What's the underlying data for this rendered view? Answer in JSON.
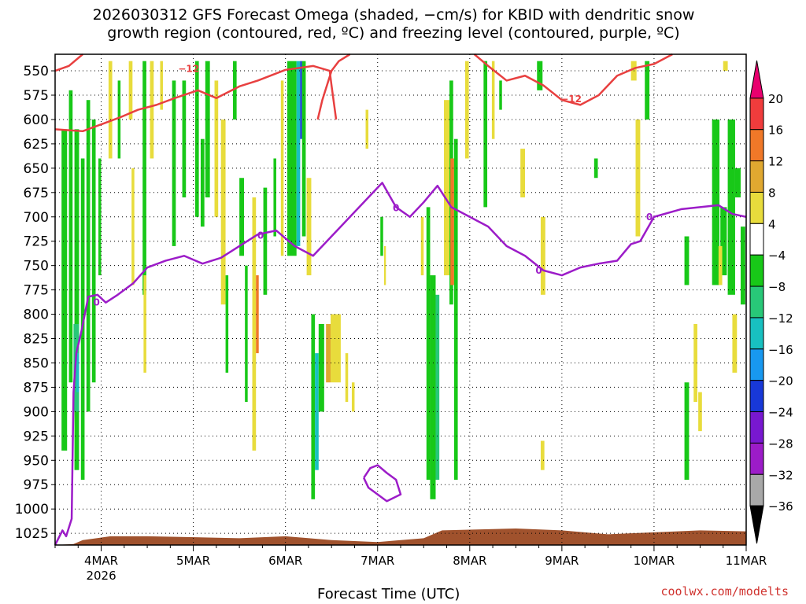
{
  "title": "2026030312 GFS Forecast Omega (shaded, −cm/s) for KBID with dendritic snow\ngrowth region (contoured, red, ºC) and freezing level (contoured, purple, ºC)",
  "credit": "coolwx.com/modelts",
  "chart_data": {
    "type": "heatmap",
    "xlabel": "Forecast Time (UTC)",
    "x_ticks": [
      {
        "label": "4MAR",
        "sub": "2026",
        "t": 0.5
      },
      {
        "label": "5MAR",
        "sub": "",
        "t": 1.5
      },
      {
        "label": "6MAR",
        "sub": "",
        "t": 2.5
      },
      {
        "label": "7MAR",
        "sub": "",
        "t": 3.5
      },
      {
        "label": "8MAR",
        "sub": "",
        "t": 4.5
      },
      {
        "label": "9MAR",
        "sub": "",
        "t": 5.5
      },
      {
        "label": "10MAR",
        "sub": "",
        "t": 6.5
      },
      {
        "label": "11MAR",
        "sub": "",
        "t": 7.5
      }
    ],
    "x_range": [
      0,
      7.5
    ],
    "y_ticks": [
      550,
      575,
      600,
      625,
      650,
      675,
      700,
      725,
      750,
      775,
      800,
      825,
      850,
      875,
      900,
      925,
      950,
      975,
      1000,
      1025
    ],
    "y_range": [
      533,
      1037
    ],
    "grid": true,
    "colorbar": {
      "labels": [
        "20",
        "16",
        "12",
        "8",
        "4",
        "−4",
        "−8",
        "−12",
        "−16",
        "−20",
        "−24",
        "−28",
        "−32",
        "−36"
      ],
      "colors": [
        "#e8006e",
        "#f03c3c",
        "#f07828",
        "#e0a830",
        "#e8dc3c",
        "#ffffff",
        "#18c818",
        "#28c878",
        "#18c0c0",
        "#1898f0",
        "#1838d8",
        "#7818d0",
        "#9c1cc8",
        "#a8a8a8",
        "#000000"
      ]
    },
    "omega_cells": [
      {
        "t0": 0.07,
        "t1": 0.13,
        "p0": 610,
        "p1": 940,
        "color": "#18c818"
      },
      {
        "t0": 0.15,
        "t1": 0.19,
        "p0": 570,
        "p1": 870,
        "color": "#18c818"
      },
      {
        "t0": 0.21,
        "t1": 0.26,
        "p0": 610,
        "p1": 960,
        "color": "#18c818"
      },
      {
        "t0": 0.28,
        "t1": 0.32,
        "p0": 640,
        "p1": 970,
        "color": "#18c818"
      },
      {
        "t0": 0.34,
        "t1": 0.38,
        "p0": 580,
        "p1": 900,
        "color": "#18c818"
      },
      {
        "t0": 0.4,
        "t1": 0.44,
        "p0": 600,
        "p1": 870,
        "color": "#18c818"
      },
      {
        "t0": 0.2,
        "t1": 0.26,
        "p0": 810,
        "p1": 900,
        "color": "#28c878"
      },
      {
        "t0": 0.23,
        "t1": 0.26,
        "p0": 840,
        "p1": 880,
        "color": "#18c0c0"
      },
      {
        "t0": 0.47,
        "t1": 0.5,
        "p0": 640,
        "p1": 760,
        "color": "#18c818"
      },
      {
        "t0": 0.58,
        "t1": 0.62,
        "p0": 540,
        "p1": 640,
        "color": "#e8dc3c"
      },
      {
        "t0": 0.68,
        "t1": 0.71,
        "p0": 560,
        "p1": 640,
        "color": "#18c818"
      },
      {
        "t0": 0.8,
        "t1": 0.84,
        "p0": 540,
        "p1": 600,
        "color": "#e8dc3c"
      },
      {
        "t0": 0.83,
        "t1": 0.86,
        "p0": 650,
        "p1": 770,
        "color": "#e8dc3c"
      },
      {
        "t0": 0.95,
        "t1": 0.99,
        "p0": 540,
        "p1": 780,
        "color": "#18c818"
      },
      {
        "t0": 0.96,
        "t1": 0.99,
        "p0": 760,
        "p1": 860,
        "color": "#e8dc3c"
      },
      {
        "t0": 1.03,
        "t1": 1.07,
        "p0": 540,
        "p1": 640,
        "color": "#e8dc3c"
      },
      {
        "t0": 1.14,
        "t1": 1.17,
        "p0": 540,
        "p1": 590,
        "color": "#e8dc3c"
      },
      {
        "t0": 1.27,
        "t1": 1.31,
        "p0": 560,
        "p1": 730,
        "color": "#18c818"
      },
      {
        "t0": 1.38,
        "t1": 1.42,
        "p0": 560,
        "p1": 680,
        "color": "#18c818"
      },
      {
        "t0": 1.52,
        "t1": 1.56,
        "p0": 540,
        "p1": 700,
        "color": "#18c818"
      },
      {
        "t0": 1.58,
        "t1": 1.62,
        "p0": 620,
        "p1": 710,
        "color": "#18c818"
      },
      {
        "t0": 1.63,
        "t1": 1.68,
        "p0": 540,
        "p1": 680,
        "color": "#18c818"
      },
      {
        "t0": 1.73,
        "t1": 1.77,
        "p0": 560,
        "p1": 700,
        "color": "#e8dc3c"
      },
      {
        "t0": 1.8,
        "t1": 1.85,
        "p0": 600,
        "p1": 790,
        "color": "#e8dc3c"
      },
      {
        "t0": 1.85,
        "t1": 1.88,
        "p0": 760,
        "p1": 860,
        "color": "#18c818"
      },
      {
        "t0": 1.93,
        "t1": 1.97,
        "p0": 540,
        "p1": 600,
        "color": "#18c818"
      },
      {
        "t0": 2.0,
        "t1": 2.05,
        "p0": 660,
        "p1": 740,
        "color": "#18c818"
      },
      {
        "t0": 2.06,
        "t1": 2.09,
        "p0": 750,
        "p1": 890,
        "color": "#18c818"
      },
      {
        "t0": 2.14,
        "t1": 2.18,
        "p0": 680,
        "p1": 940,
        "color": "#e8dc3c"
      },
      {
        "t0": 2.18,
        "t1": 2.21,
        "p0": 760,
        "p1": 840,
        "color": "#f07828"
      },
      {
        "t0": 2.26,
        "t1": 2.3,
        "p0": 670,
        "p1": 780,
        "color": "#18c818"
      },
      {
        "t0": 2.37,
        "t1": 2.4,
        "p0": 640,
        "p1": 720,
        "color": "#18c818"
      },
      {
        "t0": 2.45,
        "t1": 2.48,
        "p0": 560,
        "p1": 740,
        "color": "#e8dc3c"
      },
      {
        "t0": 2.52,
        "t1": 2.62,
        "p0": 540,
        "p1": 740,
        "color": "#18c818"
      },
      {
        "t0": 2.62,
        "t1": 2.66,
        "p0": 540,
        "p1": 730,
        "color": "#18c0c0"
      },
      {
        "t0": 2.66,
        "t1": 2.68,
        "p0": 540,
        "p1": 620,
        "color": "#1838d8"
      },
      {
        "t0": 2.68,
        "t1": 2.72,
        "p0": 540,
        "p1": 720,
        "color": "#18c818"
      },
      {
        "t0": 2.73,
        "t1": 2.78,
        "p0": 660,
        "p1": 760,
        "color": "#e8dc3c"
      },
      {
        "t0": 2.78,
        "t1": 2.82,
        "p0": 800,
        "p1": 990,
        "color": "#18c818"
      },
      {
        "t0": 2.82,
        "t1": 2.86,
        "p0": 840,
        "p1": 960,
        "color": "#18c0c0"
      },
      {
        "t0": 2.86,
        "t1": 2.92,
        "p0": 810,
        "p1": 900,
        "color": "#18c818"
      },
      {
        "t0": 2.94,
        "t1": 2.99,
        "p0": 810,
        "p1": 870,
        "color": "#e0a830"
      },
      {
        "t0": 2.99,
        "t1": 3.1,
        "p0": 800,
        "p1": 870,
        "color": "#e8dc3c"
      },
      {
        "t0": 3.15,
        "t1": 3.18,
        "p0": 840,
        "p1": 890,
        "color": "#e8dc3c"
      },
      {
        "t0": 3.22,
        "t1": 3.25,
        "p0": 870,
        "p1": 900,
        "color": "#e8dc3c"
      },
      {
        "t0": 3.37,
        "t1": 3.4,
        "p0": 590,
        "p1": 630,
        "color": "#e8dc3c"
      },
      {
        "t0": 3.53,
        "t1": 3.56,
        "p0": 700,
        "p1": 740,
        "color": "#18c818"
      },
      {
        "t0": 3.57,
        "t1": 3.59,
        "p0": 730,
        "p1": 770,
        "color": "#e8dc3c"
      },
      {
        "t0": 3.97,
        "t1": 4.0,
        "p0": 700,
        "p1": 760,
        "color": "#e8dc3c"
      },
      {
        "t0": 4.03,
        "t1": 4.07,
        "p0": 690,
        "p1": 970,
        "color": "#18c818"
      },
      {
        "t0": 4.07,
        "t1": 4.13,
        "p0": 760,
        "p1": 990,
        "color": "#18c818"
      },
      {
        "t0": 4.13,
        "t1": 4.17,
        "p0": 780,
        "p1": 970,
        "color": "#28c878"
      },
      {
        "t0": 4.22,
        "t1": 4.28,
        "p0": 580,
        "p1": 760,
        "color": "#e8dc3c"
      },
      {
        "t0": 4.28,
        "t1": 4.32,
        "p0": 560,
        "p1": 790,
        "color": "#18c818"
      },
      {
        "t0": 4.29,
        "t1": 4.33,
        "p0": 640,
        "p1": 770,
        "color": "#f07828"
      },
      {
        "t0": 4.33,
        "t1": 4.37,
        "p0": 620,
        "p1": 970,
        "color": "#18c818"
      },
      {
        "t0": 4.45,
        "t1": 4.49,
        "p0": 540,
        "p1": 640,
        "color": "#e8dc3c"
      },
      {
        "t0": 4.65,
        "t1": 4.69,
        "p0": 540,
        "p1": 690,
        "color": "#18c818"
      },
      {
        "t0": 4.74,
        "t1": 4.77,
        "p0": 540,
        "p1": 620,
        "color": "#e8dc3c"
      },
      {
        "t0": 4.82,
        "t1": 4.85,
        "p0": 560,
        "p1": 590,
        "color": "#18c818"
      },
      {
        "t0": 5.05,
        "t1": 5.1,
        "p0": 630,
        "p1": 680,
        "color": "#e8dc3c"
      },
      {
        "t0": 5.23,
        "t1": 5.29,
        "p0": 540,
        "p1": 570,
        "color": "#18c818"
      },
      {
        "t0": 5.27,
        "t1": 5.32,
        "p0": 700,
        "p1": 780,
        "color": "#e8dc3c"
      },
      {
        "t0": 5.27,
        "t1": 5.31,
        "p0": 930,
        "p1": 960,
        "color": "#e8dc3c"
      },
      {
        "t0": 5.85,
        "t1": 5.89,
        "p0": 640,
        "p1": 660,
        "color": "#18c818"
      },
      {
        "t0": 6.25,
        "t1": 6.31,
        "p0": 540,
        "p1": 560,
        "color": "#e8dc3c"
      },
      {
        "t0": 6.3,
        "t1": 6.35,
        "p0": 600,
        "p1": 720,
        "color": "#e8dc3c"
      },
      {
        "t0": 6.4,
        "t1": 6.45,
        "p0": 540,
        "p1": 600,
        "color": "#18c818"
      },
      {
        "t0": 6.83,
        "t1": 6.88,
        "p0": 720,
        "p1": 770,
        "color": "#18c818"
      },
      {
        "t0": 6.83,
        "t1": 6.88,
        "p0": 870,
        "p1": 970,
        "color": "#18c818"
      },
      {
        "t0": 6.93,
        "t1": 6.97,
        "p0": 810,
        "p1": 890,
        "color": "#e8dc3c"
      },
      {
        "t0": 6.98,
        "t1": 7.02,
        "p0": 880,
        "p1": 920,
        "color": "#e8dc3c"
      },
      {
        "t0": 7.13,
        "t1": 7.21,
        "p0": 600,
        "p1": 770,
        "color": "#18c818"
      },
      {
        "t0": 7.22,
        "t1": 7.29,
        "p0": 690,
        "p1": 760,
        "color": "#18c818"
      },
      {
        "t0": 7.3,
        "t1": 7.38,
        "p0": 600,
        "p1": 780,
        "color": "#18c818"
      },
      {
        "t0": 7.38,
        "t1": 7.44,
        "p0": 650,
        "p1": 680,
        "color": "#18c818"
      },
      {
        "t0": 7.44,
        "t1": 7.49,
        "p0": 710,
        "p1": 790,
        "color": "#18c818"
      },
      {
        "t0": 7.2,
        "t1": 7.24,
        "p0": 730,
        "p1": 770,
        "color": "#e8dc3c"
      },
      {
        "t0": 7.35,
        "t1": 7.4,
        "p0": 800,
        "p1": 860,
        "color": "#e8dc3c"
      },
      {
        "t0": 7.25,
        "t1": 7.3,
        "p0": 540,
        "p1": 550,
        "color": "#e8dc3c"
      }
    ],
    "terrain": {
      "color": "#a0522d",
      "points": [
        [
          0,
          1037
        ],
        [
          0.2,
          1036
        ],
        [
          0.3,
          1032
        ],
        [
          0.6,
          1028
        ],
        [
          1.0,
          1028
        ],
        [
          2.0,
          1030
        ],
        [
          2.5,
          1028
        ],
        [
          3.0,
          1032
        ],
        [
          3.5,
          1034
        ],
        [
          4.0,
          1030
        ],
        [
          4.2,
          1022
        ],
        [
          5.0,
          1020
        ],
        [
          5.5,
          1022
        ],
        [
          6.0,
          1026
        ],
        [
          6.5,
          1024
        ],
        [
          7.0,
          1022
        ],
        [
          7.5,
          1023
        ]
      ]
    },
    "dgz_contour": {
      "label": "−12",
      "color": "#e84040",
      "label_positions": [
        [
          1.45,
          548
        ],
        [
          5.6,
          579
        ]
      ],
      "lines": [
        [
          [
            0.0,
            610
          ],
          [
            0.3,
            612
          ],
          [
            0.5,
            605
          ],
          [
            0.7,
            598
          ],
          [
            0.9,
            590
          ],
          [
            1.1,
            585
          ],
          [
            1.3,
            578
          ],
          [
            1.55,
            570
          ],
          [
            1.75,
            578
          ],
          [
            2.0,
            566
          ],
          [
            2.2,
            560
          ],
          [
            2.5,
            549
          ],
          [
            2.8,
            545
          ],
          [
            2.98,
            550
          ],
          [
            3.0,
            565
          ],
          [
            3.05,
            600
          ]
        ],
        [
          [
            0.0,
            550
          ],
          [
            0.15,
            545
          ],
          [
            0.3,
            533
          ]
        ],
        [
          [
            2.85,
            600
          ],
          [
            2.9,
            580
          ],
          [
            3.0,
            550
          ],
          [
            3.08,
            540
          ],
          [
            3.2,
            533
          ]
        ],
        [
          [
            4.55,
            533
          ],
          [
            4.7,
            545
          ],
          [
            4.9,
            560
          ],
          [
            5.1,
            555
          ],
          [
            5.3,
            565
          ],
          [
            5.5,
            580
          ],
          [
            5.7,
            585
          ],
          [
            5.9,
            575
          ],
          [
            6.1,
            555
          ],
          [
            6.3,
            547
          ],
          [
            6.5,
            543
          ],
          [
            6.7,
            533
          ]
        ]
      ]
    },
    "freezing_contour": {
      "label": "0",
      "color": "#9c1cc8",
      "label_positions": [
        [
          0.45,
          788
        ],
        [
          2.23,
          719
        ],
        [
          3.7,
          691
        ],
        [
          5.25,
          755
        ],
        [
          6.45,
          700
        ]
      ],
      "lines": [
        [
          [
            0.0,
            1037
          ],
          [
            0.08,
            1022
          ],
          [
            0.12,
            1028
          ],
          [
            0.18,
            1010
          ],
          [
            0.2,
            880
          ],
          [
            0.23,
            840
          ],
          [
            0.28,
            820
          ],
          [
            0.36,
            782
          ],
          [
            0.46,
            780
          ],
          [
            0.55,
            788
          ],
          [
            0.68,
            780
          ],
          [
            0.85,
            768
          ],
          [
            1.0,
            752
          ],
          [
            1.2,
            745
          ],
          [
            1.4,
            740
          ],
          [
            1.6,
            748
          ],
          [
            1.8,
            742
          ],
          [
            2.0,
            730
          ],
          [
            2.2,
            718
          ],
          [
            2.4,
            714
          ],
          [
            2.6,
            730
          ],
          [
            2.8,
            740
          ],
          [
            3.0,
            720
          ],
          [
            3.2,
            700
          ],
          [
            3.4,
            680
          ],
          [
            3.55,
            665
          ],
          [
            3.7,
            690
          ],
          [
            3.85,
            700
          ],
          [
            4.0,
            685
          ],
          [
            4.15,
            668
          ],
          [
            4.3,
            690
          ],
          [
            4.5,
            700
          ],
          [
            4.7,
            710
          ],
          [
            4.9,
            730
          ],
          [
            5.1,
            740
          ],
          [
            5.3,
            755
          ],
          [
            5.5,
            760
          ],
          [
            5.7,
            752
          ],
          [
            5.9,
            748
          ],
          [
            6.1,
            745
          ],
          [
            6.25,
            728
          ],
          [
            6.35,
            725
          ],
          [
            6.5,
            700
          ],
          [
            6.8,
            692
          ],
          [
            7.0,
            690
          ],
          [
            7.2,
            688
          ],
          [
            7.35,
            697
          ],
          [
            7.5,
            700
          ]
        ],
        [
          [
            3.35,
            968
          ],
          [
            3.42,
            958
          ],
          [
            3.5,
            955
          ],
          [
            3.6,
            963
          ],
          [
            3.7,
            970
          ],
          [
            3.75,
            985
          ],
          [
            3.6,
            992
          ],
          [
            3.5,
            985
          ],
          [
            3.4,
            978
          ],
          [
            3.35,
            968
          ]
        ]
      ]
    }
  }
}
